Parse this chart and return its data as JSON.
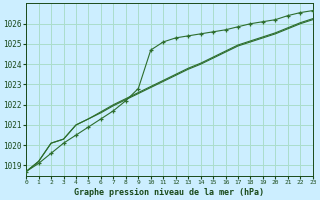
{
  "bg_color": "#cceeff",
  "grid_color": "#aaddcc",
  "line_color": "#2d6e2d",
  "marker_color": "#2d6e2d",
  "text_color": "#1a4a1a",
  "xlabel": "Graphe pression niveau de la mer (hPa)",
  "ylim": [
    1018.5,
    1027.0
  ],
  "xlim": [
    0,
    23
  ],
  "yticks": [
    1019,
    1020,
    1021,
    1022,
    1023,
    1024,
    1025,
    1026
  ],
  "xticks": [
    0,
    1,
    2,
    3,
    4,
    5,
    6,
    7,
    8,
    9,
    10,
    11,
    12,
    13,
    14,
    15,
    16,
    17,
    18,
    19,
    20,
    21,
    22,
    23
  ],
  "series": [
    [
      1018.7,
      1019.1,
      1019.6,
      1020.1,
      1020.5,
      1020.9,
      1021.3,
      1021.7,
      1022.2,
      1022.8,
      1024.7,
      1025.1,
      1025.3,
      1025.4,
      1025.5,
      1025.6,
      1025.7,
      1025.85,
      1026.0,
      1026.1,
      1026.2,
      1026.4,
      1026.55,
      1026.65
    ],
    [
      1018.7,
      1019.2,
      1020.1,
      1020.3,
      1021.0,
      1021.3,
      1021.6,
      1021.95,
      1022.25,
      1022.55,
      1022.85,
      1023.15,
      1023.45,
      1023.75,
      1024.0,
      1024.3,
      1024.6,
      1024.9,
      1025.1,
      1025.3,
      1025.5,
      1025.75,
      1026.0,
      1026.2
    ],
    [
      1018.7,
      1019.2,
      1020.1,
      1020.3,
      1021.0,
      1021.3,
      1021.65,
      1022.0,
      1022.3,
      1022.6,
      1022.9,
      1023.2,
      1023.5,
      1023.8,
      1024.05,
      1024.35,
      1024.65,
      1024.95,
      1025.15,
      1025.35,
      1025.55,
      1025.8,
      1026.05,
      1026.25
    ]
  ],
  "figsize": [
    3.2,
    2.0
  ],
  "dpi": 100
}
